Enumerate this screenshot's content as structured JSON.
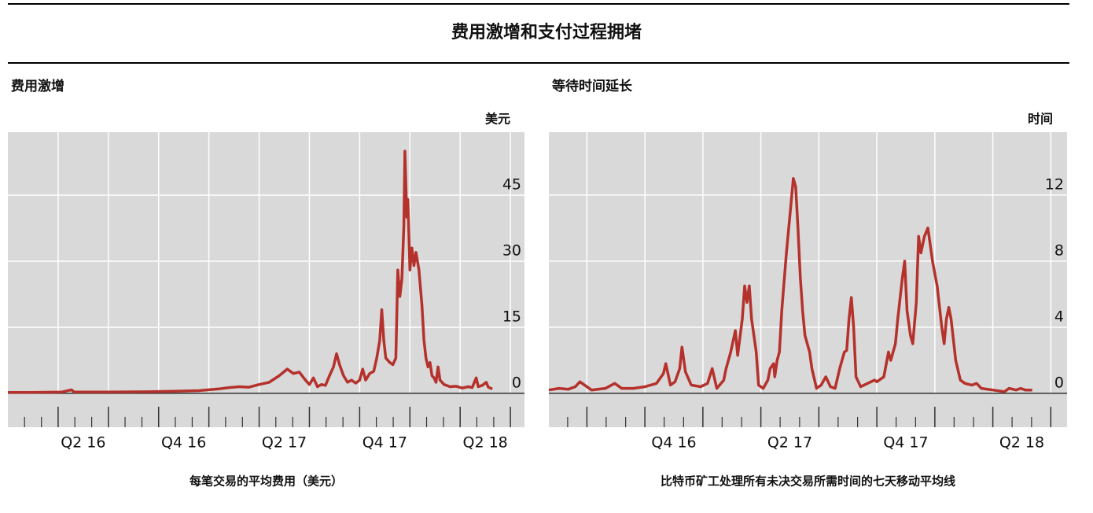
{
  "header": {
    "title": "费用激增和支付过程拥堵"
  },
  "chart_data": [
    {
      "type": "line",
      "title": "费用激增",
      "unit": "美元",
      "caption": "每笔交易的平均费用（美元）",
      "grid": true,
      "xlim": [
        2016.0,
        2018.57
      ],
      "ylim": [
        -7.7,
        59.3
      ],
      "yticks": [
        0,
        15,
        30,
        45
      ],
      "xticks": [
        2016.25,
        2016.5,
        2016.75,
        2017.0,
        2017.25,
        2017.5,
        2017.75,
        2018.0,
        2018.25,
        2018.5
      ],
      "xminorticks": [
        2016.083,
        2016.167,
        2016.333,
        2016.417,
        2016.583,
        2016.667,
        2016.833,
        2016.917,
        2017.083,
        2017.167,
        2017.333,
        2017.417,
        2017.583,
        2017.667,
        2017.833,
        2017.917,
        2018.083,
        2018.167,
        2018.333,
        2018.417
      ],
      "xticklabels": [
        {
          "value": 2016.375,
          "label": "Q2 16"
        },
        {
          "value": 2016.875,
          "label": "Q4 16"
        },
        {
          "value": 2017.375,
          "label": "Q2 17"
        },
        {
          "value": 2017.875,
          "label": "Q4 17"
        },
        {
          "value": 2018.375,
          "label": "Q2 18"
        }
      ],
      "x": [
        2016.0,
        2016.1,
        2016.2,
        2016.27,
        2016.316,
        2016.33,
        2016.5,
        2016.7,
        2016.85,
        2016.95,
        2017.0,
        2017.05,
        2017.1,
        2017.15,
        2017.2,
        2017.25,
        2017.3,
        2017.35,
        2017.39,
        2017.42,
        2017.45,
        2017.48,
        2017.5,
        2017.52,
        2017.54,
        2017.56,
        2017.58,
        2017.6,
        2017.62,
        2017.635,
        2017.65,
        2017.67,
        2017.69,
        2017.71,
        2017.73,
        2017.75,
        2017.765,
        2017.78,
        2017.8,
        2017.82,
        2017.835,
        2017.85,
        2017.86,
        2017.87,
        2017.88,
        2017.9,
        2017.915,
        2017.93,
        2017.94,
        2017.95,
        2017.96,
        2017.97,
        2017.975,
        2017.985,
        2017.99,
        2018.0,
        2018.01,
        2018.02,
        2018.03,
        2018.045,
        2018.06,
        2018.07,
        2018.08,
        2018.09,
        2018.1,
        2018.11,
        2018.12,
        2018.13,
        2018.14,
        2018.15,
        2018.17,
        2018.2,
        2018.23,
        2018.26,
        2018.29,
        2018.31,
        2018.33,
        2018.34,
        2018.36,
        2018.38,
        2018.39,
        2018.41
      ],
      "series": [
        {
          "color": "#b5312c",
          "values": [
            0.2,
            0.2,
            0.25,
            0.3,
            0.8,
            0.3,
            0.3,
            0.35,
            0.5,
            0.6,
            0.8,
            1.0,
            1.3,
            1.5,
            1.4,
            2.0,
            2.5,
            4.0,
            5.5,
            4.5,
            4.8,
            3.0,
            2.0,
            3.5,
            1.5,
            2.0,
            1.8,
            4.0,
            6.0,
            9.0,
            6.5,
            4.0,
            2.5,
            3.0,
            2.3,
            3.0,
            5.5,
            3.0,
            4.5,
            5.0,
            8.0,
            12,
            19,
            12,
            8,
            7,
            6.5,
            8,
            28,
            22,
            26,
            38,
            55,
            40,
            44,
            28,
            33,
            29,
            32,
            28,
            20,
            12,
            8,
            6,
            7,
            4,
            3.5,
            2.5,
            6.0,
            3,
            2,
            1.5,
            1.6,
            1.2,
            1.5,
            1.3,
            3.5,
            1.5,
            1.8,
            2.5,
            1.4,
            1.0
          ]
        }
      ]
    },
    {
      "type": "line",
      "title": "等待时间延长",
      "unit": "时间",
      "caption": "比特币矿工处理所有未决交易所需时间的七天移动平均线",
      "grid": true,
      "xlim": [
        2016.336,
        2018.57
      ],
      "ylim": [
        -2.05,
        15.8
      ],
      "yticks": [
        0,
        4,
        8,
        12
      ],
      "xticks": [
        2016.5,
        2016.75,
        2017.0,
        2017.25,
        2017.5,
        2017.75,
        2018.0,
        2018.25,
        2018.5
      ],
      "xminorticks": [
        2016.417,
        2016.583,
        2016.667,
        2016.833,
        2016.917,
        2017.083,
        2017.167,
        2017.333,
        2017.417,
        2017.583,
        2017.667,
        2017.833,
        2017.917,
        2018.083,
        2018.167,
        2018.333,
        2018.417
      ],
      "xticklabels": [
        {
          "value": 2016.875,
          "label": "Q4 16"
        },
        {
          "value": 2017.375,
          "label": "Q2 17"
        },
        {
          "value": 2017.875,
          "label": "Q4 17"
        },
        {
          "value": 2018.375,
          "label": "Q2 18"
        }
      ],
      "x": [
        2016.336,
        2016.38,
        2016.42,
        2016.45,
        2016.47,
        2016.49,
        2016.52,
        2016.58,
        2016.62,
        2016.65,
        2016.7,
        2016.75,
        2016.8,
        2016.83,
        2016.84,
        2016.86,
        2016.88,
        2016.9,
        2016.91,
        2016.925,
        2016.95,
        2016.99,
        2017.02,
        2017.04,
        2017.06,
        2017.09,
        2017.1,
        2017.12,
        2017.14,
        2017.15,
        2017.17,
        2017.18,
        2017.19,
        2017.2,
        2017.21,
        2017.23,
        2017.24,
        2017.26,
        2017.28,
        2017.29,
        2017.305,
        2017.31,
        2017.32,
        2017.33,
        2017.34,
        2017.36,
        2017.38,
        2017.39,
        2017.4,
        2017.41,
        2017.42,
        2017.43,
        2017.44,
        2017.46,
        2017.47,
        2017.49,
        2017.51,
        2017.53,
        2017.55,
        2017.57,
        2017.59,
        2017.61,
        2017.62,
        2017.63,
        2017.64,
        2017.65,
        2017.66,
        2017.68,
        2017.71,
        2017.74,
        2017.75,
        2017.78,
        2017.8,
        2017.81,
        2017.82,
        2017.83,
        2017.84,
        2017.86,
        2017.87,
        2017.88,
        2017.895,
        2017.905,
        2017.92,
        2017.93,
        2017.94,
        2017.955,
        2017.97,
        2017.98,
        2017.99,
        2018.01,
        2018.03,
        2018.04,
        2018.05,
        2018.06,
        2018.07,
        2018.09,
        2018.11,
        2018.13,
        2018.16,
        2018.18,
        2018.2,
        2018.25,
        2018.3,
        2018.32,
        2018.35,
        2018.37,
        2018.39,
        2018.42
      ],
      "series": [
        {
          "color": "#b5312c",
          "values": [
            0.2,
            0.3,
            0.25,
            0.4,
            0.7,
            0.5,
            0.2,
            0.3,
            0.6,
            0.3,
            0.3,
            0.4,
            0.6,
            1.2,
            1.8,
            0.5,
            0.7,
            1.5,
            2.8,
            1.3,
            0.5,
            0.4,
            0.6,
            1.5,
            0.3,
            0.8,
            1.5,
            2.5,
            3.8,
            2.3,
            4.5,
            6.5,
            5.5,
            6.5,
            4.5,
            2.5,
            0.5,
            0.3,
            0.8,
            1.5,
            1.8,
            1.0,
            2.0,
            2.5,
            5,
            8.5,
            11.5,
            13,
            12.5,
            10,
            7,
            5,
            3.5,
            2.5,
            1.5,
            0.3,
            0.5,
            1.0,
            0.4,
            0.3,
            1.5,
            2.5,
            2.6,
            4.5,
            5.8,
            4.0,
            1.0,
            0.4,
            0.6,
            0.8,
            0.7,
            1.0,
            2.5,
            2.0,
            2.5,
            3.0,
            4.5,
            7.0,
            8.0,
            5.0,
            3.5,
            3.0,
            5.5,
            9.5,
            8.5,
            9.5,
            10.0,
            9.0,
            8.0,
            6.5,
            4.0,
            3.0,
            4.5,
            5.2,
            4.5,
            2.0,
            0.8,
            0.6,
            0.5,
            0.6,
            0.3,
            0.2,
            0.1,
            0.3,
            0.2,
            0.3,
            0.2,
            0.2
          ]
        }
      ]
    }
  ]
}
